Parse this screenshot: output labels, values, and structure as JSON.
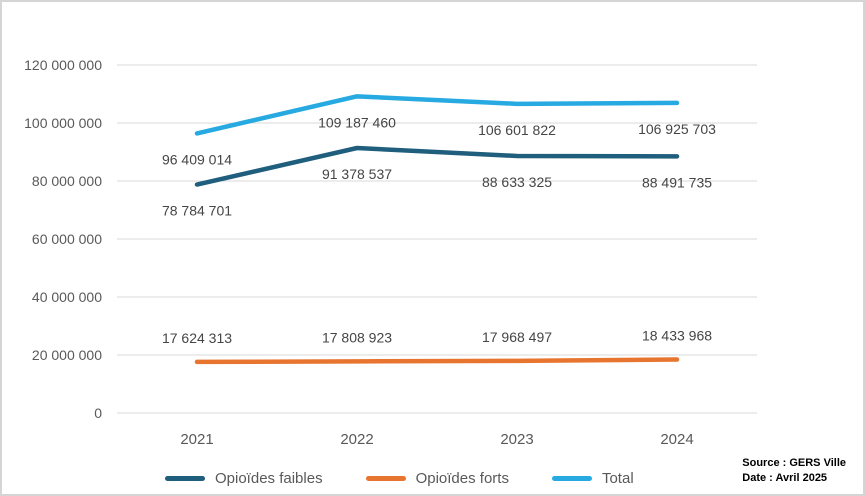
{
  "chart_data": {
    "type": "line",
    "title": "",
    "xlabel": "",
    "ylabel": "",
    "categories": [
      "2021",
      "2022",
      "2023",
      "2024"
    ],
    "series": [
      {
        "name": "Opioïdes faibles",
        "color": "#1F5E7D",
        "values": [
          78784701,
          91378537,
          88633325,
          88491735
        ],
        "labels": [
          "78 784 701",
          "91 378 537",
          "88 633 325",
          "88 491 735"
        ],
        "label_position": "below"
      },
      {
        "name": "Opioïdes forts",
        "color": "#E8752F",
        "values": [
          17624313,
          17808923,
          17968497,
          18433968
        ],
        "labels": [
          "17 624 313",
          "17 808 923",
          "17 968 497",
          "18 433 968"
        ],
        "label_position": "above"
      },
      {
        "name": "Total",
        "color": "#27A9E1",
        "values": [
          96409014,
          109187460,
          106601822,
          106925703
        ],
        "labels": [
          "96 409 014",
          "109 187 460",
          "106 601 822",
          "106 925 703"
        ],
        "label_position": "below"
      }
    ],
    "ylim": [
      0,
      120000000
    ],
    "ytick_step": 20000000,
    "ytick_labels": [
      "0",
      "20 000 000",
      "40 000 000",
      "60 000 000",
      "80 000 000",
      "100 000 000",
      "120 000 000"
    ],
    "grid": "horizontal",
    "legend_position": "bottom"
  },
  "footer": {
    "source_label": "Source : GERS Ville",
    "date_label": "Date : Avril 2025"
  },
  "colors": {
    "gridline": "#D9D9D9",
    "axis_text": "#595959",
    "data_label_text": "#454545",
    "frame_border": "#D5D5D5",
    "background": "#FFFFFF"
  }
}
